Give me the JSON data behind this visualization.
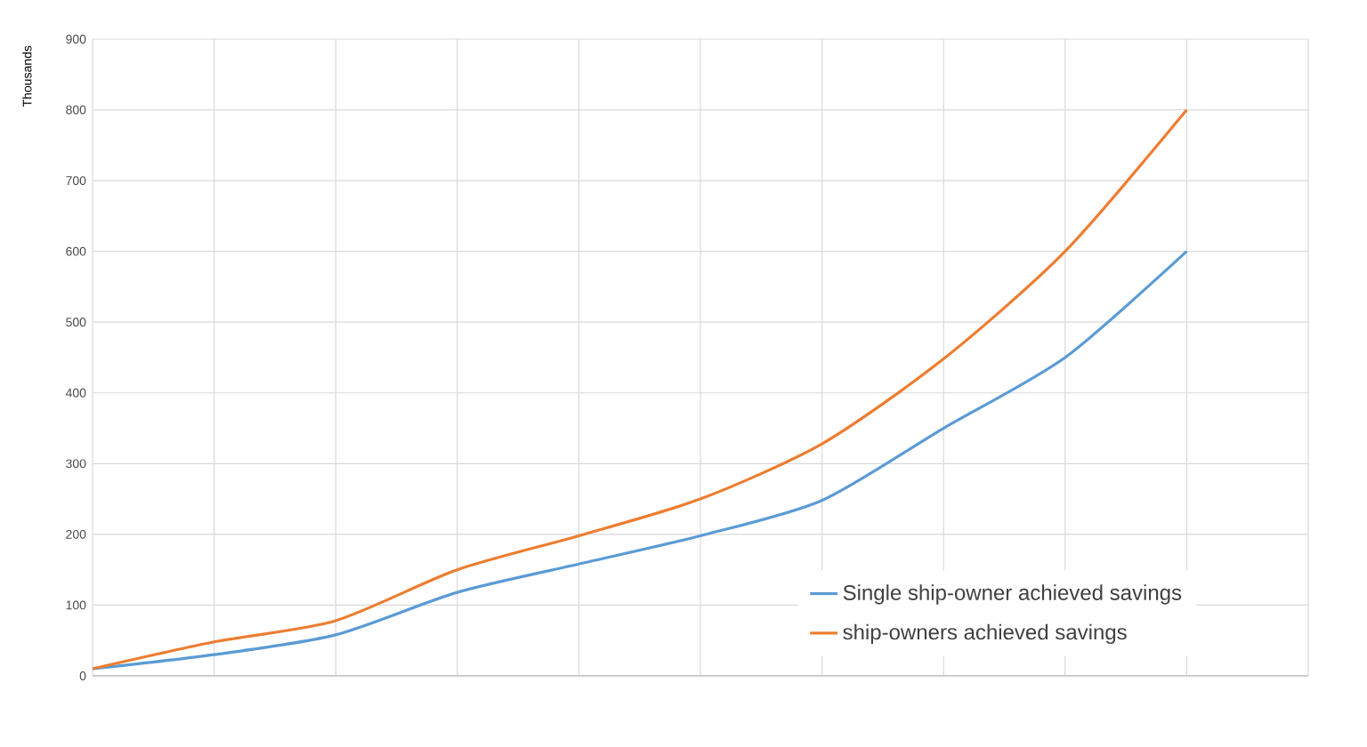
{
  "chart_data": {
    "type": "line",
    "ylabel": "Thousands",
    "categories": [
      null,
      null,
      null,
      null,
      null,
      null,
      null,
      null,
      null,
      null,
      null
    ],
    "series": [
      {
        "name": "Single ship-owner achieved savings",
        "color": "#5b9bd5",
        "values": [
          10,
          30,
          58,
          118,
          158,
          198,
          248,
          350,
          450,
          600,
          null
        ]
      },
      {
        "name": "ship-owners achieved savings",
        "color": "#ed7d31",
        "values": [
          10,
          48,
          78,
          150,
          198,
          250,
          328,
          448,
          600,
          800,
          null
        ]
      }
    ],
    "ylim": [
      0,
      900
    ],
    "yticks": [
      0,
      100,
      200,
      300,
      400,
      500,
      600,
      700,
      800,
      900
    ],
    "grid": true,
    "legend": "bottom right",
    "marker": "none",
    "line_style": "solid"
  }
}
